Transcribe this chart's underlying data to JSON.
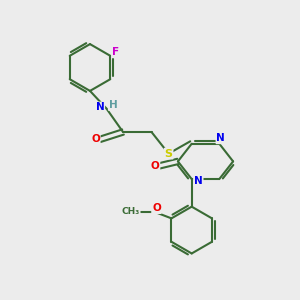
{
  "background_color": "#ececec",
  "bond_color": "#3a6b35",
  "atom_colors": {
    "N": "#0000ee",
    "O": "#ee0000",
    "S": "#cccc00",
    "F": "#cc00cc",
    "H": "#5f9ea0",
    "C": "#3a6b35"
  },
  "figsize": [
    3.0,
    3.0
  ],
  "dpi": 100
}
